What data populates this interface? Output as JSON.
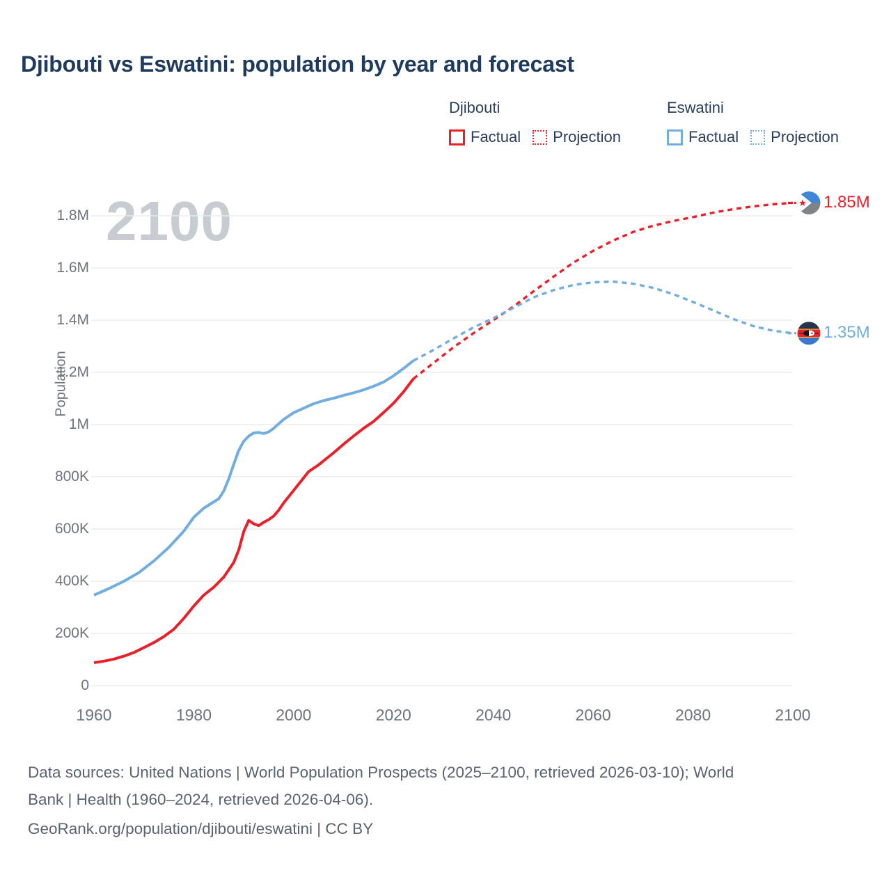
{
  "title": "Djibouti vs Eswatini: population by year and forecast",
  "watermark": "2100",
  "colors": {
    "djibouti_red": "#e8202a",
    "eswatini_blue": "#72ade0",
    "title_navy": "#1e3a5c",
    "tick_gray": "#6e747c",
    "grid_gray": "#e9ebee",
    "watermark_gray": "#c7ccd2",
    "footer_gray": "#5a6470"
  },
  "legend": {
    "groups": [
      {
        "country": "Djibouti",
        "items": [
          {
            "label": "Factual",
            "style": "solid",
            "color": "#e8202a"
          },
          {
            "label": "Projection",
            "style": "dotted",
            "color": "#e8202a"
          }
        ]
      },
      {
        "country": "Eswatini",
        "items": [
          {
            "label": "Factual",
            "style": "solid",
            "color": "#72ade0"
          },
          {
            "label": "Projection",
            "style": "dotted",
            "color": "#72ade0"
          }
        ]
      }
    ]
  },
  "axes": {
    "y_label": "Population",
    "y_ticks": [
      {
        "label": "1.8M",
        "value": 1800000
      },
      {
        "label": "1.6M",
        "value": 1600000
      },
      {
        "label": "1.4M",
        "value": 1400000
      },
      {
        "label": "1.2M",
        "value": 1200000
      },
      {
        "label": "1M",
        "value": 1000000
      },
      {
        "label": "800K",
        "value": 800000
      },
      {
        "label": "600K",
        "value": 600000
      },
      {
        "label": "400K",
        "value": 400000
      },
      {
        "label": "200K",
        "value": 200000
      },
      {
        "label": "0",
        "value": 0
      }
    ],
    "x_ticks": [
      {
        "label": "1960",
        "value": 1960
      },
      {
        "label": "1980",
        "value": 1980
      },
      {
        "label": "2000",
        "value": 2000
      },
      {
        "label": "2020",
        "value": 2020
      },
      {
        "label": "2040",
        "value": 2040
      },
      {
        "label": "2060",
        "value": 2060
      },
      {
        "label": "2080",
        "value": 2080
      },
      {
        "label": "2100",
        "value": 2100
      }
    ]
  },
  "end_labels": [
    {
      "country": "Djibouti",
      "value": "1.85M",
      "color": "#e8202a"
    },
    {
      "country": "Eswatini",
      "value": "1.35M",
      "color": "#72ade0"
    }
  ],
  "footer": {
    "lines": [
      "Data sources: United Nations | World Population Prospects (2025–2100, retrieved 2026-03-10); World",
      "Bank | Health (1960–2024, retrieved 2026-04-06).",
      "GeoRank.org/population/djibouti/eswatini | CC BY"
    ]
  },
  "chart_data": {
    "type": "line",
    "title": "Djibouti vs Eswatini: population by year and forecast",
    "xlabel": "",
    "ylabel": "Population",
    "xlim": [
      1960,
      2100
    ],
    "ylim": [
      0,
      1850000
    ],
    "grid": "horizontal",
    "legend_position": "top-right",
    "series": [
      {
        "name": "Djibouti Factual",
        "style": "solid",
        "color": "#e8202a",
        "points": [
          [
            1960,
            88000
          ],
          [
            1962,
            94000
          ],
          [
            1964,
            102000
          ],
          [
            1966,
            113000
          ],
          [
            1968,
            127000
          ],
          [
            1970,
            146000
          ],
          [
            1972,
            165000
          ],
          [
            1974,
            188000
          ],
          [
            1976,
            216000
          ],
          [
            1978,
            258000
          ],
          [
            1980,
            305000
          ],
          [
            1982,
            347000
          ],
          [
            1984,
            377000
          ],
          [
            1986,
            416000
          ],
          [
            1988,
            472000
          ],
          [
            1989,
            520000
          ],
          [
            1990,
            590000
          ],
          [
            1991,
            633000
          ],
          [
            1992,
            620000
          ],
          [
            1993,
            613000
          ],
          [
            1994,
            626000
          ],
          [
            1995,
            636000
          ],
          [
            1996,
            650000
          ],
          [
            1997,
            672000
          ],
          [
            1998,
            700000
          ],
          [
            2000,
            748000
          ],
          [
            2002,
            796000
          ],
          [
            2003,
            820000
          ],
          [
            2005,
            846000
          ],
          [
            2008,
            892000
          ],
          [
            2010,
            925000
          ],
          [
            2012,
            956000
          ],
          [
            2014,
            986000
          ],
          [
            2016,
            1012000
          ],
          [
            2018,
            1046000
          ],
          [
            2020,
            1082000
          ],
          [
            2022,
            1125000
          ],
          [
            2024,
            1176000
          ]
        ]
      },
      {
        "name": "Djibouti Projection",
        "style": "dashed",
        "color": "#e8202a",
        "points": [
          [
            2024,
            1176000
          ],
          [
            2028,
            1236000
          ],
          [
            2032,
            1296000
          ],
          [
            2036,
            1350000
          ],
          [
            2040,
            1400000
          ],
          [
            2044,
            1452000
          ],
          [
            2048,
            1510000
          ],
          [
            2052,
            1566000
          ],
          [
            2056,
            1620000
          ],
          [
            2060,
            1666000
          ],
          [
            2064,
            1705000
          ],
          [
            2068,
            1738000
          ],
          [
            2072,
            1762000
          ],
          [
            2076,
            1780000
          ],
          [
            2080,
            1795000
          ],
          [
            2084,
            1812000
          ],
          [
            2088,
            1825000
          ],
          [
            2092,
            1836000
          ],
          [
            2096,
            1844000
          ],
          [
            2100,
            1850000
          ]
        ]
      },
      {
        "name": "Eswatini Factual",
        "style": "solid",
        "color": "#72ade0",
        "points": [
          [
            1960,
            347000
          ],
          [
            1963,
            372000
          ],
          [
            1966,
            400000
          ],
          [
            1969,
            433000
          ],
          [
            1972,
            478000
          ],
          [
            1975,
            530000
          ],
          [
            1978,
            592000
          ],
          [
            1980,
            645000
          ],
          [
            1982,
            680000
          ],
          [
            1984,
            704000
          ],
          [
            1985,
            716000
          ],
          [
            1986,
            746000
          ],
          [
            1987,
            792000
          ],
          [
            1988,
            848000
          ],
          [
            1989,
            902000
          ],
          [
            1990,
            936000
          ],
          [
            1991,
            956000
          ],
          [
            1992,
            968000
          ],
          [
            1993,
            970000
          ],
          [
            1994,
            966000
          ],
          [
            1995,
            972000
          ],
          [
            1996,
            986000
          ],
          [
            1998,
            1020000
          ],
          [
            2000,
            1046000
          ],
          [
            2002,
            1063000
          ],
          [
            2004,
            1080000
          ],
          [
            2006,
            1092000
          ],
          [
            2008,
            1101000
          ],
          [
            2010,
            1112000
          ],
          [
            2012,
            1122000
          ],
          [
            2014,
            1133000
          ],
          [
            2016,
            1147000
          ],
          [
            2018,
            1163000
          ],
          [
            2020,
            1187000
          ],
          [
            2022,
            1215000
          ],
          [
            2024,
            1245000
          ]
        ]
      },
      {
        "name": "Eswatini Projection",
        "style": "dashed",
        "color": "#72ade0",
        "points": [
          [
            2024,
            1245000
          ],
          [
            2028,
            1286000
          ],
          [
            2032,
            1330000
          ],
          [
            2036,
            1372000
          ],
          [
            2040,
            1408000
          ],
          [
            2044,
            1447000
          ],
          [
            2048,
            1487000
          ],
          [
            2052,
            1515000
          ],
          [
            2056,
            1535000
          ],
          [
            2060,
            1545000
          ],
          [
            2064,
            1548000
          ],
          [
            2068,
            1540000
          ],
          [
            2072,
            1524000
          ],
          [
            2076,
            1500000
          ],
          [
            2080,
            1470000
          ],
          [
            2084,
            1438000
          ],
          [
            2088,
            1405000
          ],
          [
            2092,
            1378000
          ],
          [
            2096,
            1360000
          ],
          [
            2100,
            1350000
          ]
        ]
      }
    ]
  }
}
